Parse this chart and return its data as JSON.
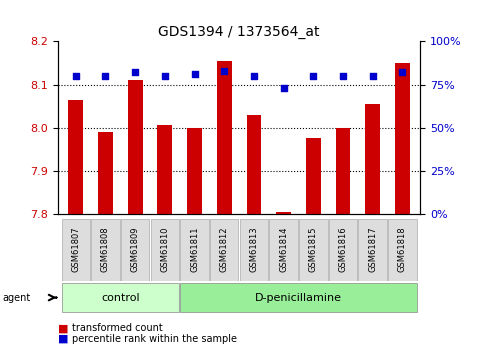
{
  "title": "GDS1394 / 1373564_at",
  "samples": [
    "GSM61807",
    "GSM61808",
    "GSM61809",
    "GSM61810",
    "GSM61811",
    "GSM61812",
    "GSM61813",
    "GSM61814",
    "GSM61815",
    "GSM61816",
    "GSM61817",
    "GSM61818"
  ],
  "bar_values": [
    8.065,
    7.99,
    8.11,
    8.005,
    8.0,
    8.155,
    8.03,
    7.805,
    7.975,
    8.0,
    8.055,
    8.15
  ],
  "percentile_values": [
    80,
    80,
    82,
    80,
    81,
    83,
    80,
    73,
    80,
    80,
    80,
    82
  ],
  "bar_bottom": 7.8,
  "ylim_left": [
    7.8,
    8.2
  ],
  "ylim_right": [
    0,
    100
  ],
  "yticks_left": [
    7.8,
    7.9,
    8.0,
    8.1,
    8.2
  ],
  "yticks_right": [
    0,
    25,
    50,
    75,
    100
  ],
  "bar_color": "#cc0000",
  "percentile_color": "#0000cc",
  "group1_label": "control",
  "group2_label": "D-penicillamine",
  "group1_count": 4,
  "group2_count": 8,
  "group1_bg": "#ccffcc",
  "group2_bg": "#99ee99",
  "tick_bg": "#dddddd",
  "agent_label": "agent",
  "legend1": "transformed count",
  "legend2": "percentile rank within the sample",
  "dotted_line_color": "#000000",
  "grid_lines": [
    7.9,
    8.0,
    8.1
  ]
}
